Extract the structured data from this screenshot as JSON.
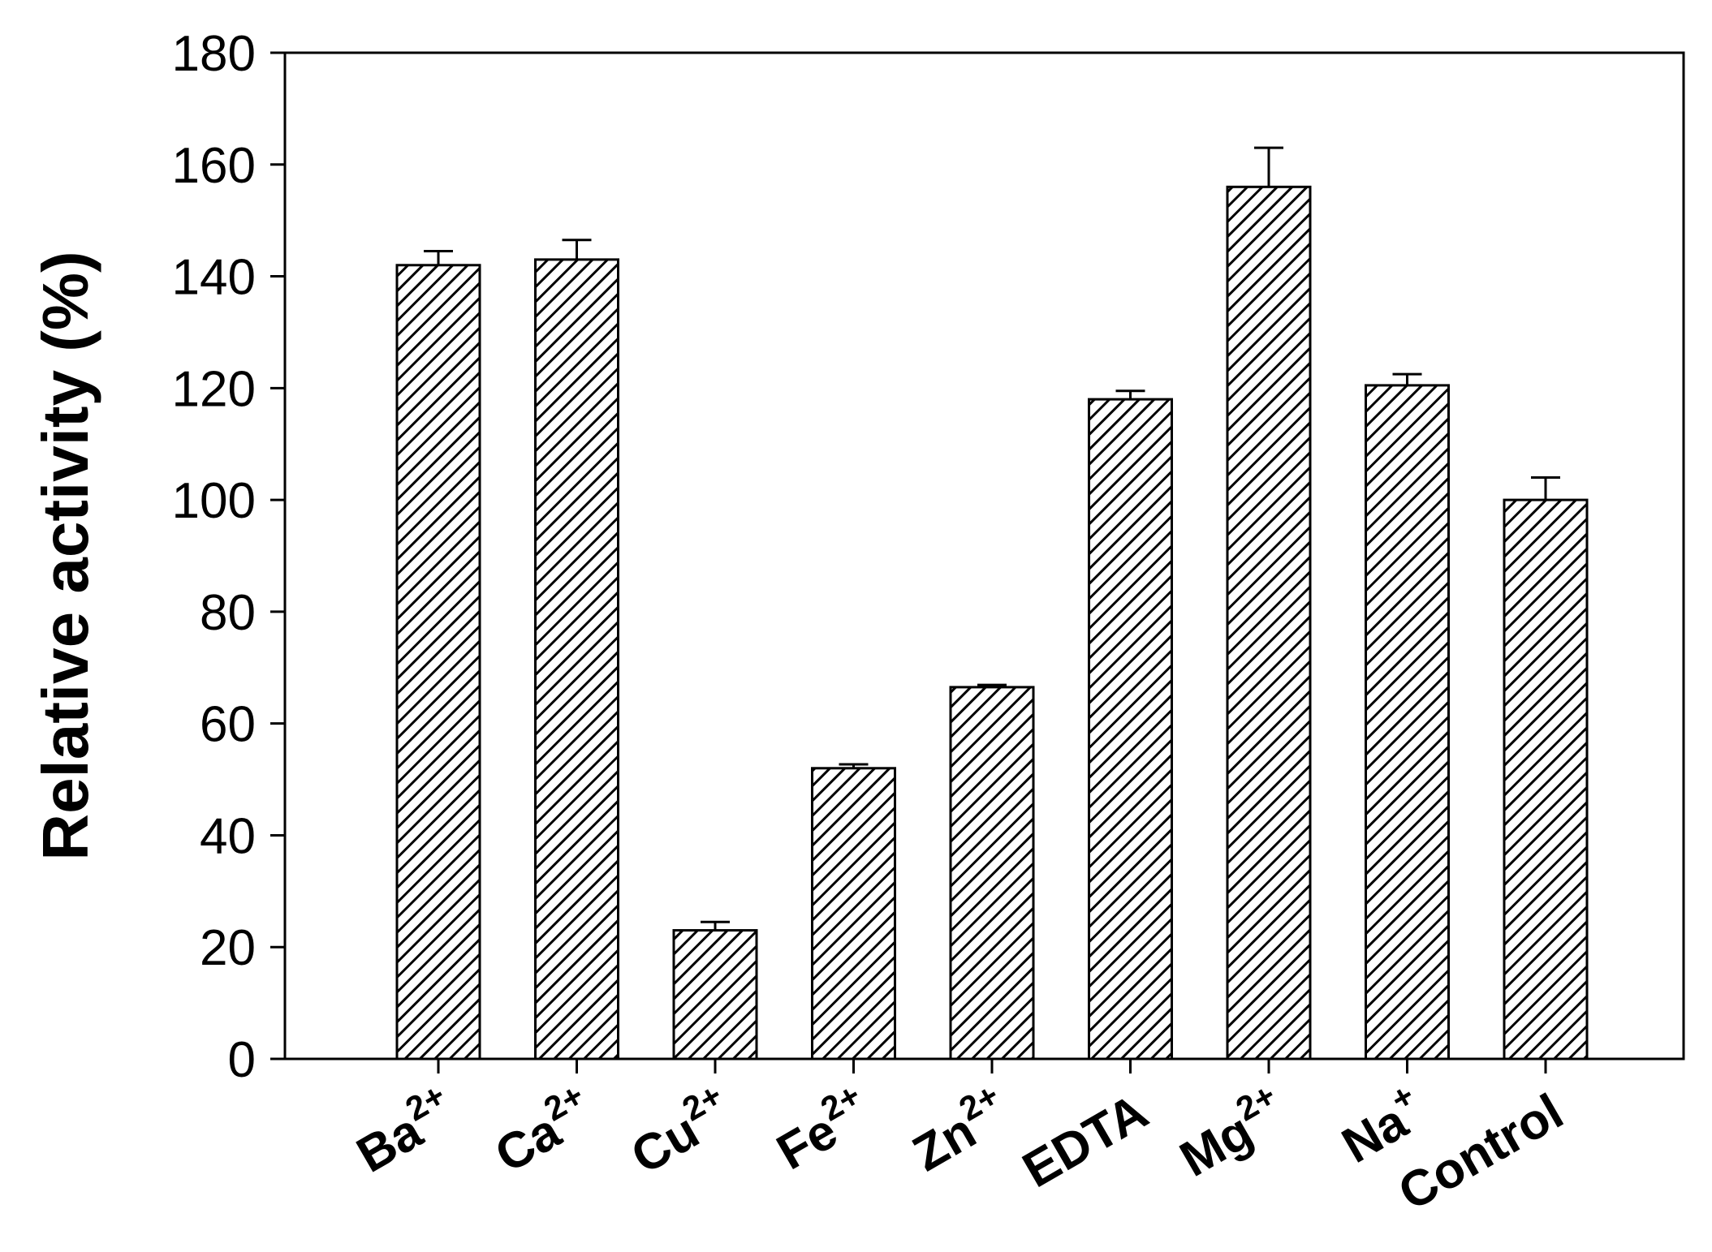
{
  "chart_data": {
    "type": "bar",
    "ylabel": "Relative activity (%)",
    "xlabel": "",
    "ylim": [
      0,
      180
    ],
    "yticks": [
      "0",
      "20",
      "40",
      "60",
      "80",
      "100",
      "120",
      "140",
      "160",
      "180"
    ],
    "categories": [
      {
        "base": "Ba",
        "sup": "2+"
      },
      {
        "base": "Ca",
        "sup": "2+"
      },
      {
        "base": "Cu",
        "sup": "2+"
      },
      {
        "base": "Fe",
        "sup": "2+"
      },
      {
        "base": "Zn",
        "sup": "2+"
      },
      {
        "base": "EDTA",
        "sup": ""
      },
      {
        "base": "Mg",
        "sup": "2+"
      },
      {
        "base": "Na",
        "sup": "+"
      },
      {
        "base": "Control",
        "sup": ""
      }
    ],
    "values": [
      142,
      143,
      23,
      52,
      66.5,
      118,
      156,
      120.5,
      100
    ],
    "errors": [
      2.5,
      3.5,
      1.5,
      0.7,
      0.4,
      1.5,
      7,
      2,
      4
    ],
    "grid": false,
    "bar_fill": "hatched",
    "colors": {
      "bar_stroke": "#000000",
      "hatch": "#000000",
      "background": "#ffffff"
    }
  }
}
